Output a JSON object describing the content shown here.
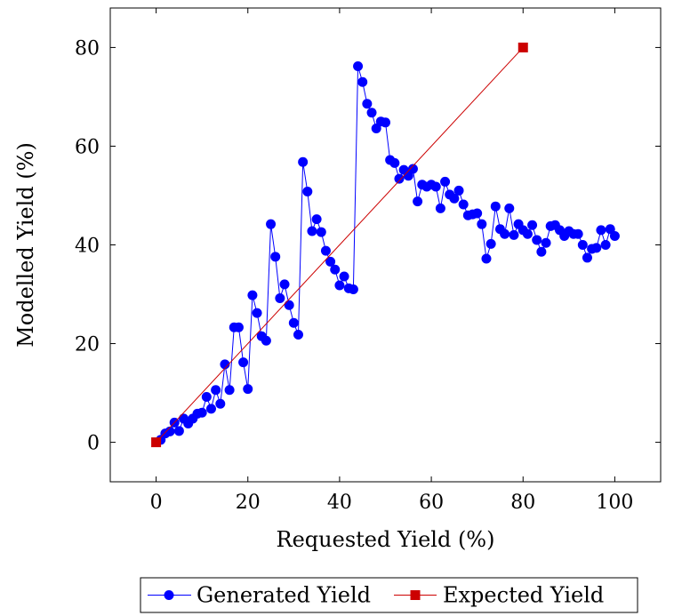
{
  "chart_data": {
    "type": "line",
    "xlabel": "Requested Yield (%)",
    "ylabel": "Modelled Yield (%)",
    "xlim": [
      -10,
      110
    ],
    "ylim": [
      -8,
      88
    ],
    "xticks": [
      0,
      20,
      40,
      60,
      80,
      100
    ],
    "yticks": [
      0,
      20,
      40,
      60,
      80
    ],
    "grid": false,
    "legend_position": "bottom-center",
    "series": [
      {
        "name": "Generated Yield",
        "color": "#0000ff",
        "marker": "circle",
        "x": [
          1,
          2,
          3,
          4,
          5,
          6,
          7,
          8,
          9,
          10,
          11,
          12,
          13,
          14,
          15,
          16,
          17,
          18,
          19,
          20,
          21,
          22,
          23,
          24,
          25,
          26,
          27,
          28,
          29,
          30,
          31,
          32,
          33,
          34,
          35,
          36,
          37,
          38,
          39,
          40,
          41,
          42,
          43,
          44,
          45,
          46,
          47,
          48,
          49,
          50,
          51,
          52,
          53,
          54,
          55,
          56,
          57,
          58,
          59,
          60,
          61,
          62,
          63,
          64,
          65,
          66,
          67,
          68,
          69,
          70,
          71,
          72,
          73,
          74,
          75,
          76,
          77,
          78,
          79,
          80,
          81,
          82,
          83,
          84,
          85,
          86,
          87,
          88,
          89,
          90,
          91,
          92,
          93,
          94,
          95,
          96,
          97,
          98,
          99,
          100
        ],
        "y": [
          0.5,
          1.8,
          2.2,
          4.0,
          2.3,
          4.8,
          3.8,
          4.8,
          5.8,
          6.0,
          9.2,
          6.8,
          10.6,
          7.8,
          15.8,
          10.6,
          23.3,
          23.3,
          16.2,
          10.8,
          29.8,
          26.2,
          21.5,
          20.6,
          44.2,
          37.6,
          29.2,
          32.0,
          27.8,
          24.2,
          21.8,
          56.8,
          50.8,
          42.8,
          45.2,
          42.6,
          38.8,
          36.6,
          35.0,
          31.8,
          33.6,
          31.2,
          31.0,
          76.2,
          73.0,
          68.6,
          66.8,
          63.6,
          65.0,
          64.8,
          57.2,
          56.6,
          53.4,
          55.2,
          54.0,
          55.4,
          48.8,
          52.2,
          51.8,
          52.2,
          51.8,
          47.4,
          52.8,
          50.2,
          49.4,
          51.0,
          48.2,
          46.0,
          46.2,
          46.4,
          44.2,
          37.2,
          40.2,
          47.8,
          43.2,
          42.2,
          47.4,
          42.0,
          44.2,
          43.0,
          42.2,
          44.0,
          41.0,
          38.6,
          40.4,
          43.8,
          44.0,
          43.0,
          41.8,
          42.8,
          42.2,
          42.2,
          40.0,
          37.4,
          39.2,
          39.4,
          43.0,
          40.0,
          43.2,
          41.8
        ]
      },
      {
        "name": "Expected Yield",
        "color": "#cc0000",
        "marker": "square",
        "x": [
          0,
          80
        ],
        "y": [
          0,
          80
        ]
      }
    ]
  }
}
